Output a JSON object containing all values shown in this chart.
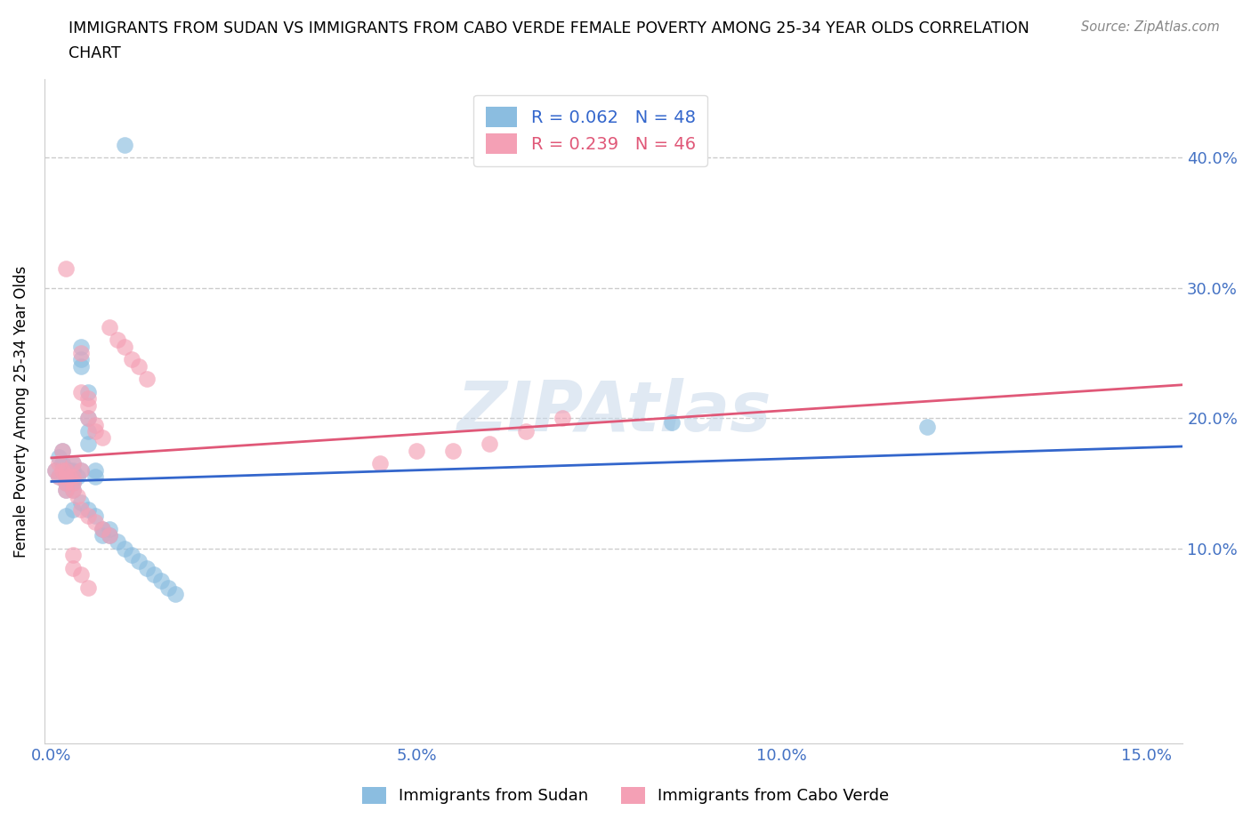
{
  "title_line1": "IMMIGRANTS FROM SUDAN VS IMMIGRANTS FROM CABO VERDE FEMALE POVERTY AMONG 25-34 YEAR OLDS CORRELATION",
  "title_line2": "CHART",
  "source": "Source: ZipAtlas.com",
  "xlabel_ticks": [
    "0.0%",
    "5.0%",
    "10.0%",
    "15.0%"
  ],
  "xlabel_vals": [
    0.0,
    0.05,
    0.1,
    0.15
  ],
  "ylabel_ticks": [
    "10.0%",
    "20.0%",
    "30.0%",
    "40.0%"
  ],
  "ylabel_vals": [
    0.1,
    0.2,
    0.3,
    0.4
  ],
  "ylabel_label": "Female Poverty Among 25-34 Year Olds",
  "xlim": [
    -0.001,
    0.155
  ],
  "ylim": [
    -0.05,
    0.46
  ],
  "sudan_color": "#8bbde0",
  "sudan_color_line": "#3366cc",
  "cabo_verde_color": "#f4a0b5",
  "cabo_verde_color_line": "#e05878",
  "sudan_R": 0.062,
  "sudan_N": 48,
  "cabo_verde_R": 0.239,
  "cabo_verde_N": 46,
  "legend_label_sudan": "Immigrants from Sudan",
  "legend_label_cabo": "Immigrants from Cabo Verde",
  "watermark": "ZIPAtlas",
  "sudan_x": [
    0.0005,
    0.001,
    0.001,
    0.0015,
    0.0015,
    0.002,
    0.002,
    0.002,
    0.002,
    0.0025,
    0.0025,
    0.003,
    0.003,
    0.003,
    0.003,
    0.003,
    0.0035,
    0.004,
    0.004,
    0.004,
    0.004,
    0.005,
    0.005,
    0.005,
    0.005,
    0.006,
    0.006,
    0.007,
    0.007,
    0.008,
    0.008,
    0.009,
    0.01,
    0.011,
    0.012,
    0.013,
    0.014,
    0.015,
    0.016,
    0.017,
    0.002,
    0.003,
    0.004,
    0.005,
    0.006,
    0.085,
    0.12,
    0.01
  ],
  "sudan_y": [
    0.16,
    0.155,
    0.17,
    0.165,
    0.175,
    0.16,
    0.155,
    0.15,
    0.145,
    0.16,
    0.155,
    0.165,
    0.16,
    0.155,
    0.15,
    0.145,
    0.155,
    0.16,
    0.255,
    0.245,
    0.24,
    0.22,
    0.2,
    0.19,
    0.18,
    0.16,
    0.155,
    0.115,
    0.11,
    0.115,
    0.11,
    0.105,
    0.1,
    0.095,
    0.09,
    0.085,
    0.08,
    0.075,
    0.07,
    0.065,
    0.125,
    0.13,
    0.135,
    0.13,
    0.125,
    0.197,
    0.193,
    0.41
  ],
  "cabo_verde_x": [
    0.0005,
    0.001,
    0.001,
    0.0015,
    0.0015,
    0.002,
    0.002,
    0.002,
    0.002,
    0.0025,
    0.003,
    0.003,
    0.003,
    0.003,
    0.0035,
    0.004,
    0.004,
    0.004,
    0.005,
    0.005,
    0.005,
    0.006,
    0.006,
    0.007,
    0.008,
    0.009,
    0.01,
    0.011,
    0.012,
    0.013,
    0.004,
    0.005,
    0.006,
    0.007,
    0.008,
    0.003,
    0.003,
    0.004,
    0.005,
    0.055,
    0.06,
    0.065,
    0.07,
    0.05,
    0.045,
    0.002
  ],
  "cabo_verde_y": [
    0.16,
    0.165,
    0.155,
    0.16,
    0.175,
    0.16,
    0.155,
    0.15,
    0.145,
    0.155,
    0.165,
    0.155,
    0.15,
    0.145,
    0.14,
    0.16,
    0.25,
    0.22,
    0.215,
    0.21,
    0.2,
    0.195,
    0.19,
    0.185,
    0.27,
    0.26,
    0.255,
    0.245,
    0.24,
    0.23,
    0.13,
    0.125,
    0.12,
    0.115,
    0.11,
    0.095,
    0.085,
    0.08,
    0.07,
    0.175,
    0.18,
    0.19,
    0.2,
    0.175,
    0.165,
    0.315
  ]
}
